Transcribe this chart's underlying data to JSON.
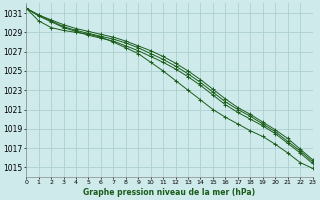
{
  "title": "Graphe pression niveau de la mer (hPa)",
  "bg_color": "#ceeaea",
  "grid_color": "#aed0d0",
  "line_color": "#1a5c1a",
  "marker_color": "#1a5c1a",
  "xlim": [
    0,
    23
  ],
  "ylim": [
    1014.0,
    1032.0
  ],
  "yticks": [
    1015,
    1017,
    1019,
    1021,
    1023,
    1025,
    1027,
    1029,
    1031
  ],
  "xticks": [
    0,
    1,
    2,
    3,
    4,
    5,
    6,
    7,
    8,
    9,
    10,
    11,
    12,
    13,
    14,
    15,
    16,
    17,
    18,
    19,
    20,
    21,
    22,
    23
  ],
  "series": [
    [
      1031.5,
      1030.8,
      1030.3,
      1029.8,
      1029.4,
      1029.1,
      1028.8,
      1028.5,
      1028.1,
      1027.6,
      1027.1,
      1026.5,
      1025.8,
      1025.0,
      1024.1,
      1023.1,
      1022.1,
      1021.2,
      1020.5,
      1019.7,
      1018.9,
      1018.0,
      1016.9,
      1015.8
    ],
    [
      1031.5,
      1030.7,
      1030.1,
      1029.5,
      1029.1,
      1028.7,
      1028.4,
      1028.1,
      1027.6,
      1027.1,
      1026.5,
      1025.9,
      1025.2,
      1024.4,
      1023.5,
      1022.5,
      1021.5,
      1020.7,
      1020.0,
      1019.3,
      1018.5,
      1017.5,
      1016.5,
      1015.4
    ],
    [
      1031.5,
      1030.8,
      1030.2,
      1029.6,
      1029.2,
      1028.9,
      1028.6,
      1028.3,
      1027.9,
      1027.4,
      1026.8,
      1026.2,
      1025.5,
      1024.7,
      1023.8,
      1022.8,
      1021.8,
      1021.0,
      1020.3,
      1019.5,
      1018.7,
      1017.7,
      1016.7,
      1015.6
    ],
    [
      1031.5,
      1030.2,
      1029.5,
      1029.2,
      1029.0,
      1028.8,
      1028.5,
      1028.0,
      1027.4,
      1026.8,
      1025.9,
      1025.0,
      1024.0,
      1023.0,
      1022.0,
      1021.0,
      1020.2,
      1019.5,
      1018.8,
      1018.2,
      1017.4,
      1016.5,
      1015.5,
      1014.9
    ]
  ]
}
